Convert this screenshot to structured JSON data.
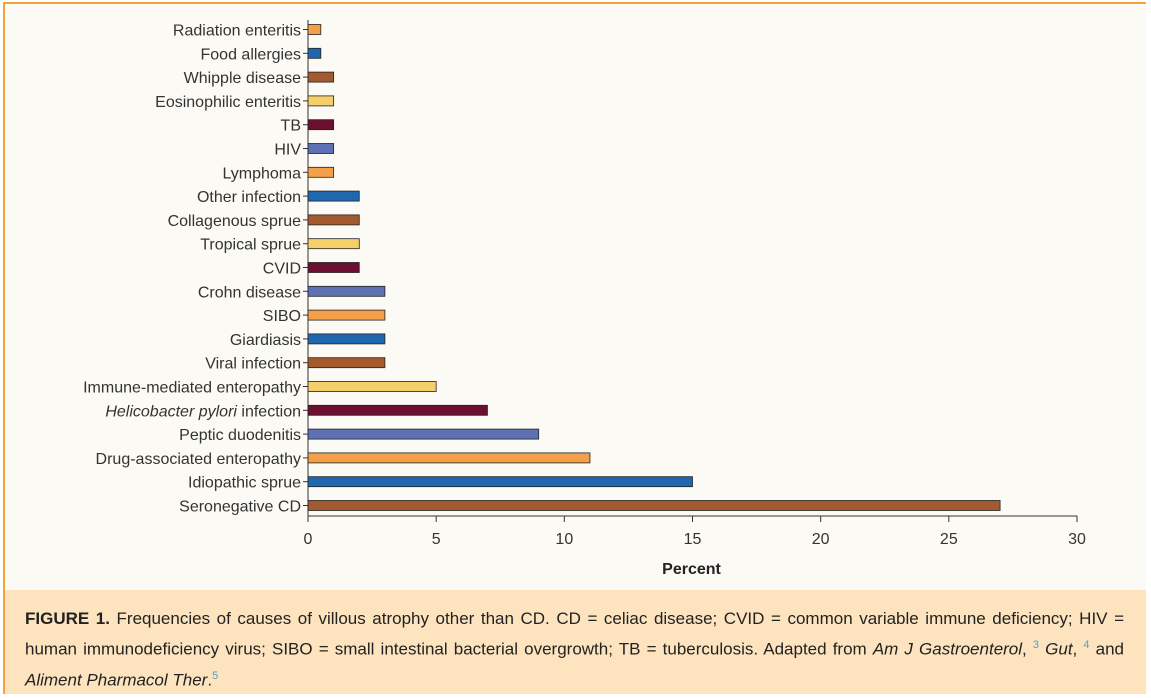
{
  "chart_data": {
    "type": "bar",
    "orientation": "horizontal",
    "categories": [
      "Radiation enteritis",
      "Food allergies",
      "Whipple disease",
      "Eosinophilic enteritis",
      "TB",
      "HIV",
      "Lymphoma",
      "Other infection",
      "Collagenous sprue",
      "Tropical sprue",
      "CVID",
      "Crohn disease",
      "SIBO",
      "Giardiasis",
      "Viral infection",
      "Immune-mediated enteropathy",
      "Helicobacter pylori infection",
      "Peptic duodenitis",
      "Drug-associated enteropathy",
      "Idiopathic sprue",
      "Seronegative CD"
    ],
    "values": [
      0.5,
      0.5,
      1,
      1,
      1,
      1,
      1,
      2,
      2,
      2,
      2,
      3,
      3,
      3,
      3,
      5,
      7,
      9,
      11,
      15,
      27
    ],
    "colors": [
      "#f4a04a",
      "#1f68b0",
      "#a35a2e",
      "#f5cf6a",
      "#6b1030",
      "#5f71b5",
      "#f4a04a",
      "#1f68b0",
      "#a35a2e",
      "#f5cf6a",
      "#6b1030",
      "#5f71b5",
      "#f4a04a",
      "#1f68b0",
      "#a35a2e",
      "#f5cf6a",
      "#6b1030",
      "#5f71b5",
      "#f4a04a",
      "#1f68b0",
      "#a35a2e"
    ],
    "italic_prefix": {
      "16": "Helicobacter pylori"
    },
    "xlabel": "Percent",
    "xlim": [
      0,
      30
    ],
    "xticks": [
      0,
      5,
      10,
      15,
      20,
      25,
      30
    ]
  },
  "caption": {
    "label": "FIGURE 1.",
    "text_1": " Frequencies of causes of villous atrophy other than CD. CD = celiac disease; CVID = common variable immune deficiency; HIV = human immunodeficiency virus; SIBO = small intestinal bacterial overgrowth; TB = tuberculosis. Adapted from ",
    "ref_1_title": "Am J Gastroenterol",
    "ref_1_num": "3",
    "ref_2_title": "Gut",
    "ref_2_num": "4",
    "and_text": " and ",
    "ref_3_title": "Aliment Pharmacol Ther",
    "ref_3_num": "5",
    "sep_1": ", ",
    "sep_2": ", ",
    "end": "."
  },
  "colors": {
    "frame": "#f4a53a",
    "caption_bg": "#fde4bf",
    "ref_link": "#4aa3c9"
  }
}
